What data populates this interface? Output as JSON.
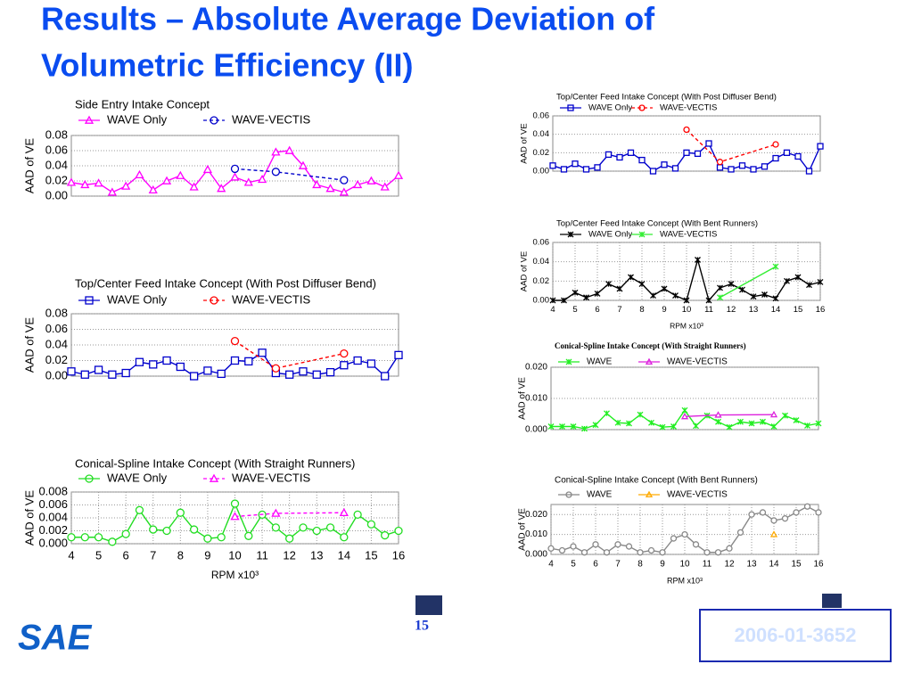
{
  "title_lines": [
    "Results – Absolute Average Deviation of",
    "Volumetric Efficiency (II)"
  ],
  "page_number": "15",
  "paper_id": "2006-01-3652",
  "logo": "SAE",
  "chart_data": [
    {
      "type": "line",
      "title": "Side Entry Intake Concept",
      "ylabel": "AAD of VE",
      "xlim": [
        4,
        16
      ],
      "ylim": [
        0,
        0.08
      ],
      "yticks": [
        {
          "value": 0,
          "label": "0.00"
        },
        0.02,
        0.04,
        0.06,
        0.08
      ],
      "grid": true,
      "series": [
        {
          "name": "WAVE Only",
          "color": "#ff00ff",
          "marker": "triangle",
          "dash": false,
          "x": [
            4,
            4.5,
            5,
            5.5,
            6,
            6.5,
            7,
            7.5,
            8,
            8.5,
            9,
            9.5,
            10,
            10.5,
            11,
            11.5,
            12,
            12.5,
            13,
            13.5,
            14,
            14.5,
            15,
            15.5,
            16
          ],
          "values": [
            0.018,
            0.015,
            0.017,
            0.005,
            0.013,
            0.028,
            0.008,
            0.02,
            0.027,
            0.012,
            0.035,
            0.01,
            0.025,
            0.018,
            0.022,
            0.058,
            0.06,
            0.04,
            0.015,
            0.01,
            0.005,
            0.015,
            0.02,
            0.012,
            0.027
          ]
        },
        {
          "name": "WAVE-VECTIS",
          "color": "#0000cc",
          "marker": "circle",
          "dash": true,
          "x": [
            10,
            11.5,
            14
          ],
          "values": [
            0.036,
            0.032,
            0.021
          ]
        }
      ]
    },
    {
      "type": "line",
      "title": "Top/Center Feed Intake Concept (With Post Diffuser Bend)",
      "ylabel": "AAD of VE",
      "xlim": [
        4,
        16
      ],
      "ylim": [
        0,
        0.08
      ],
      "yticks": [
        {
          "value": 0,
          "label": "0.00"
        },
        0.02,
        0.04,
        0.06,
        0.08
      ],
      "grid": true,
      "series": [
        {
          "name": "WAVE Only",
          "color": "#0000cc",
          "marker": "square",
          "dash": false,
          "x": [
            4,
            4.5,
            5,
            5.5,
            6,
            6.5,
            7,
            7.5,
            8,
            8.5,
            9,
            9.5,
            10,
            10.5,
            11,
            11.5,
            12,
            12.5,
            13,
            13.5,
            14,
            14.5,
            15,
            15.5,
            16
          ],
          "values": [
            0.006,
            0.002,
            0.008,
            0.002,
            0.004,
            0.018,
            0.015,
            0.02,
            0.012,
            0.0,
            0.007,
            0.003,
            0.02,
            0.019,
            0.03,
            0.004,
            0.002,
            0.006,
            0.002,
            0.005,
            0.014,
            0.02,
            0.016,
            0.0,
            0.027
          ]
        },
        {
          "name": "WAVE-VECTIS",
          "color": "#ff0000",
          "marker": "circle",
          "dash": true,
          "x": [
            10,
            11.5,
            14
          ],
          "values": [
            0.045,
            0.01,
            0.029
          ]
        }
      ]
    },
    {
      "type": "line",
      "title": "Conical-Spline Intake Concept (With Straight Runners)",
      "ylabel": "AAD of VE",
      "xlabel": "RPM x10³",
      "xlim": [
        4,
        16
      ],
      "xticks": [
        4,
        5,
        6,
        7,
        8,
        9,
        10,
        11,
        12,
        13,
        14,
        15,
        16
      ],
      "ylim": [
        0,
        0.008
      ],
      "yticks": [
        {
          "value": 0,
          "label": "0.000"
        },
        0.002,
        0.004,
        0.006,
        0.008
      ],
      "grid": true,
      "series": [
        {
          "name": "WAVE Only",
          "color": "#22dd22",
          "marker": "circle",
          "dash": false,
          "x": [
            4,
            4.5,
            5,
            5.5,
            6,
            6.5,
            7,
            7.5,
            8,
            8.5,
            9,
            9.5,
            10,
            10.5,
            11,
            11.5,
            12,
            12.5,
            13,
            13.5,
            14,
            14.5,
            15,
            15.5,
            16
          ],
          "values": [
            0.001,
            0.001,
            0.001,
            0.0003,
            0.0015,
            0.0052,
            0.0022,
            0.002,
            0.0048,
            0.0022,
            0.0008,
            0.001,
            0.0062,
            0.0012,
            0.0045,
            0.0025,
            0.0008,
            0.0025,
            0.002,
            0.0025,
            0.001,
            0.0045,
            0.003,
            0.0013,
            0.002
          ]
        },
        {
          "name": "WAVE-VECTIS",
          "color": "#ff00ff",
          "marker": "triangle",
          "dash": true,
          "x": [
            10,
            11.5,
            14
          ],
          "values": [
            0.0042,
            0.0047,
            0.0048
          ]
        }
      ]
    },
    {
      "type": "line",
      "title": "Top/Center Feed Intake Concept (With Post Diffuser Bend)",
      "ylabel": "AAD of VE",
      "xlim": [
        4,
        16
      ],
      "ylim": [
        0,
        0.06
      ],
      "yticks": [
        {
          "value": 0,
          "label": "0.00"
        },
        0.02,
        0.04,
        0.06
      ],
      "grid": true,
      "series": [
        {
          "name": "WAVE Only",
          "color": "#0000cc",
          "marker": "square",
          "dash": false,
          "x": [
            4,
            4.5,
            5,
            5.5,
            6,
            6.5,
            7,
            7.5,
            8,
            8.5,
            9,
            9.5,
            10,
            10.5,
            11,
            11.5,
            12,
            12.5,
            13,
            13.5,
            14,
            14.5,
            15,
            15.5,
            16
          ],
          "values": [
            0.006,
            0.002,
            0.008,
            0.002,
            0.004,
            0.018,
            0.015,
            0.02,
            0.012,
            0.0,
            0.007,
            0.003,
            0.02,
            0.019,
            0.03,
            0.004,
            0.002,
            0.006,
            0.002,
            0.005,
            0.014,
            0.02,
            0.016,
            0.0,
            0.027
          ]
        },
        {
          "name": "WAVE-VECTIS",
          "color": "#ff0000",
          "marker": "circle",
          "dash": true,
          "x": [
            10,
            11.5,
            14
          ],
          "values": [
            0.045,
            0.01,
            0.029
          ]
        }
      ]
    },
    {
      "type": "line",
      "title": "Top/Center Feed Intake Concept (With Bent Runners)",
      "ylabel": "AAD of VE",
      "xlabel": "RPM x10³",
      "xlim": [
        4,
        16
      ],
      "xticks": [
        4,
        5,
        6,
        7,
        8,
        9,
        10,
        11,
        12,
        13,
        14,
        15,
        16
      ],
      "ylim": [
        0,
        0.06
      ],
      "yticks": [
        {
          "value": 0,
          "label": "0.00"
        },
        0.02,
        0.04,
        0.06
      ],
      "grid": true,
      "series": [
        {
          "name": "WAVE Only",
          "color": "#000000",
          "marker": "cross",
          "dash": false,
          "x": [
            4,
            4.5,
            5,
            5.5,
            6,
            6.5,
            7,
            7.5,
            8,
            8.5,
            9,
            9.5,
            10,
            10.5,
            11,
            11.5,
            12,
            12.5,
            13,
            13.5,
            14,
            14.5,
            15,
            15.5,
            16
          ],
          "values": [
            0,
            0,
            0.008,
            0.003,
            0.007,
            0.017,
            0.012,
            0.024,
            0.017,
            0.005,
            0.012,
            0.005,
            0.0,
            0.042,
            0.0,
            0.013,
            0.017,
            0.011,
            0.004,
            0.006,
            0.002,
            0.02,
            0.024,
            0.016,
            0.019
          ]
        },
        {
          "name": "WAVE-VECTIS",
          "color": "#33ee33",
          "marker": "star",
          "dash": false,
          "x": [
            11.5,
            14
          ],
          "values": [
            0.003,
            0.035
          ]
        }
      ]
    },
    {
      "type": "line",
      "title": "Conical-Spline Intake Concept (With Straight Runners)",
      "ylabel": "AAD of VE",
      "xlim": [
        4,
        16
      ],
      "ylim": [
        0,
        0.02
      ],
      "yticks": [
        {
          "value": 0,
          "label": "0.000"
        },
        {
          "value": 0.01,
          "label": "0.010"
        },
        {
          "value": 0.02,
          "label": "0.020"
        }
      ],
      "grid": true,
      "series": [
        {
          "name": "WAVE",
          "color": "#22ee22",
          "marker": "cross",
          "dash": false,
          "x": [
            4,
            4.5,
            5,
            5.5,
            6,
            6.5,
            7,
            7.5,
            8,
            8.5,
            9,
            9.5,
            10,
            10.5,
            11,
            11.5,
            12,
            12.5,
            13,
            13.5,
            14,
            14.5,
            15,
            15.5,
            16
          ],
          "values": [
            0.001,
            0.001,
            0.001,
            0.0003,
            0.0015,
            0.0052,
            0.0022,
            0.002,
            0.0048,
            0.0022,
            0.0008,
            0.001,
            0.0062,
            0.0012,
            0.0045,
            0.0025,
            0.0008,
            0.0025,
            0.002,
            0.0025,
            0.001,
            0.0045,
            0.003,
            0.0013,
            0.002
          ]
        },
        {
          "name": "WAVE-VECTIS",
          "color": "#dd22dd",
          "marker": "triangle",
          "dash": false,
          "x": [
            10,
            11.5,
            14
          ],
          "values": [
            0.0042,
            0.0047,
            0.0048
          ]
        }
      ]
    },
    {
      "type": "line",
      "title": "Conical-Spline Intake Concept (With Bent Runners)",
      "ylabel": "AAD of VE",
      "xlabel": "RPM x10³",
      "xlim": [
        4,
        16
      ],
      "xticks": [
        4,
        5,
        6,
        7,
        8,
        9,
        10,
        11,
        12,
        13,
        14,
        15,
        16
      ],
      "ylim": [
        0,
        0.025
      ],
      "yticks": [
        {
          "value": 0,
          "label": "0.000"
        },
        {
          "value": 0.01,
          "label": "0.010"
        },
        {
          "value": 0.02,
          "label": "0.020"
        }
      ],
      "grid": true,
      "series": [
        {
          "name": "WAVE",
          "color": "#888888",
          "marker": "circle",
          "dash": false,
          "x": [
            4,
            4.5,
            5,
            5.5,
            6,
            6.5,
            7,
            7.5,
            8,
            8.5,
            9,
            9.5,
            10,
            10.5,
            11,
            11.5,
            12,
            12.5,
            13,
            13.5,
            14,
            14.5,
            15,
            15.5,
            16
          ],
          "values": [
            0.003,
            0.002,
            0.004,
            0.001,
            0.005,
            0.001,
            0.005,
            0.004,
            0.001,
            0.002,
            0.001,
            0.008,
            0.01,
            0.005,
            0.001,
            0.001,
            0.003,
            0.011,
            0.02,
            0.021,
            0.017,
            0.018,
            0.021,
            0.024,
            0.021
          ]
        },
        {
          "name": "WAVE-VECTIS",
          "color": "#ffaa00",
          "marker": "triangle",
          "dash": false,
          "x": [
            14
          ],
          "values": [
            0.01
          ]
        }
      ]
    }
  ]
}
